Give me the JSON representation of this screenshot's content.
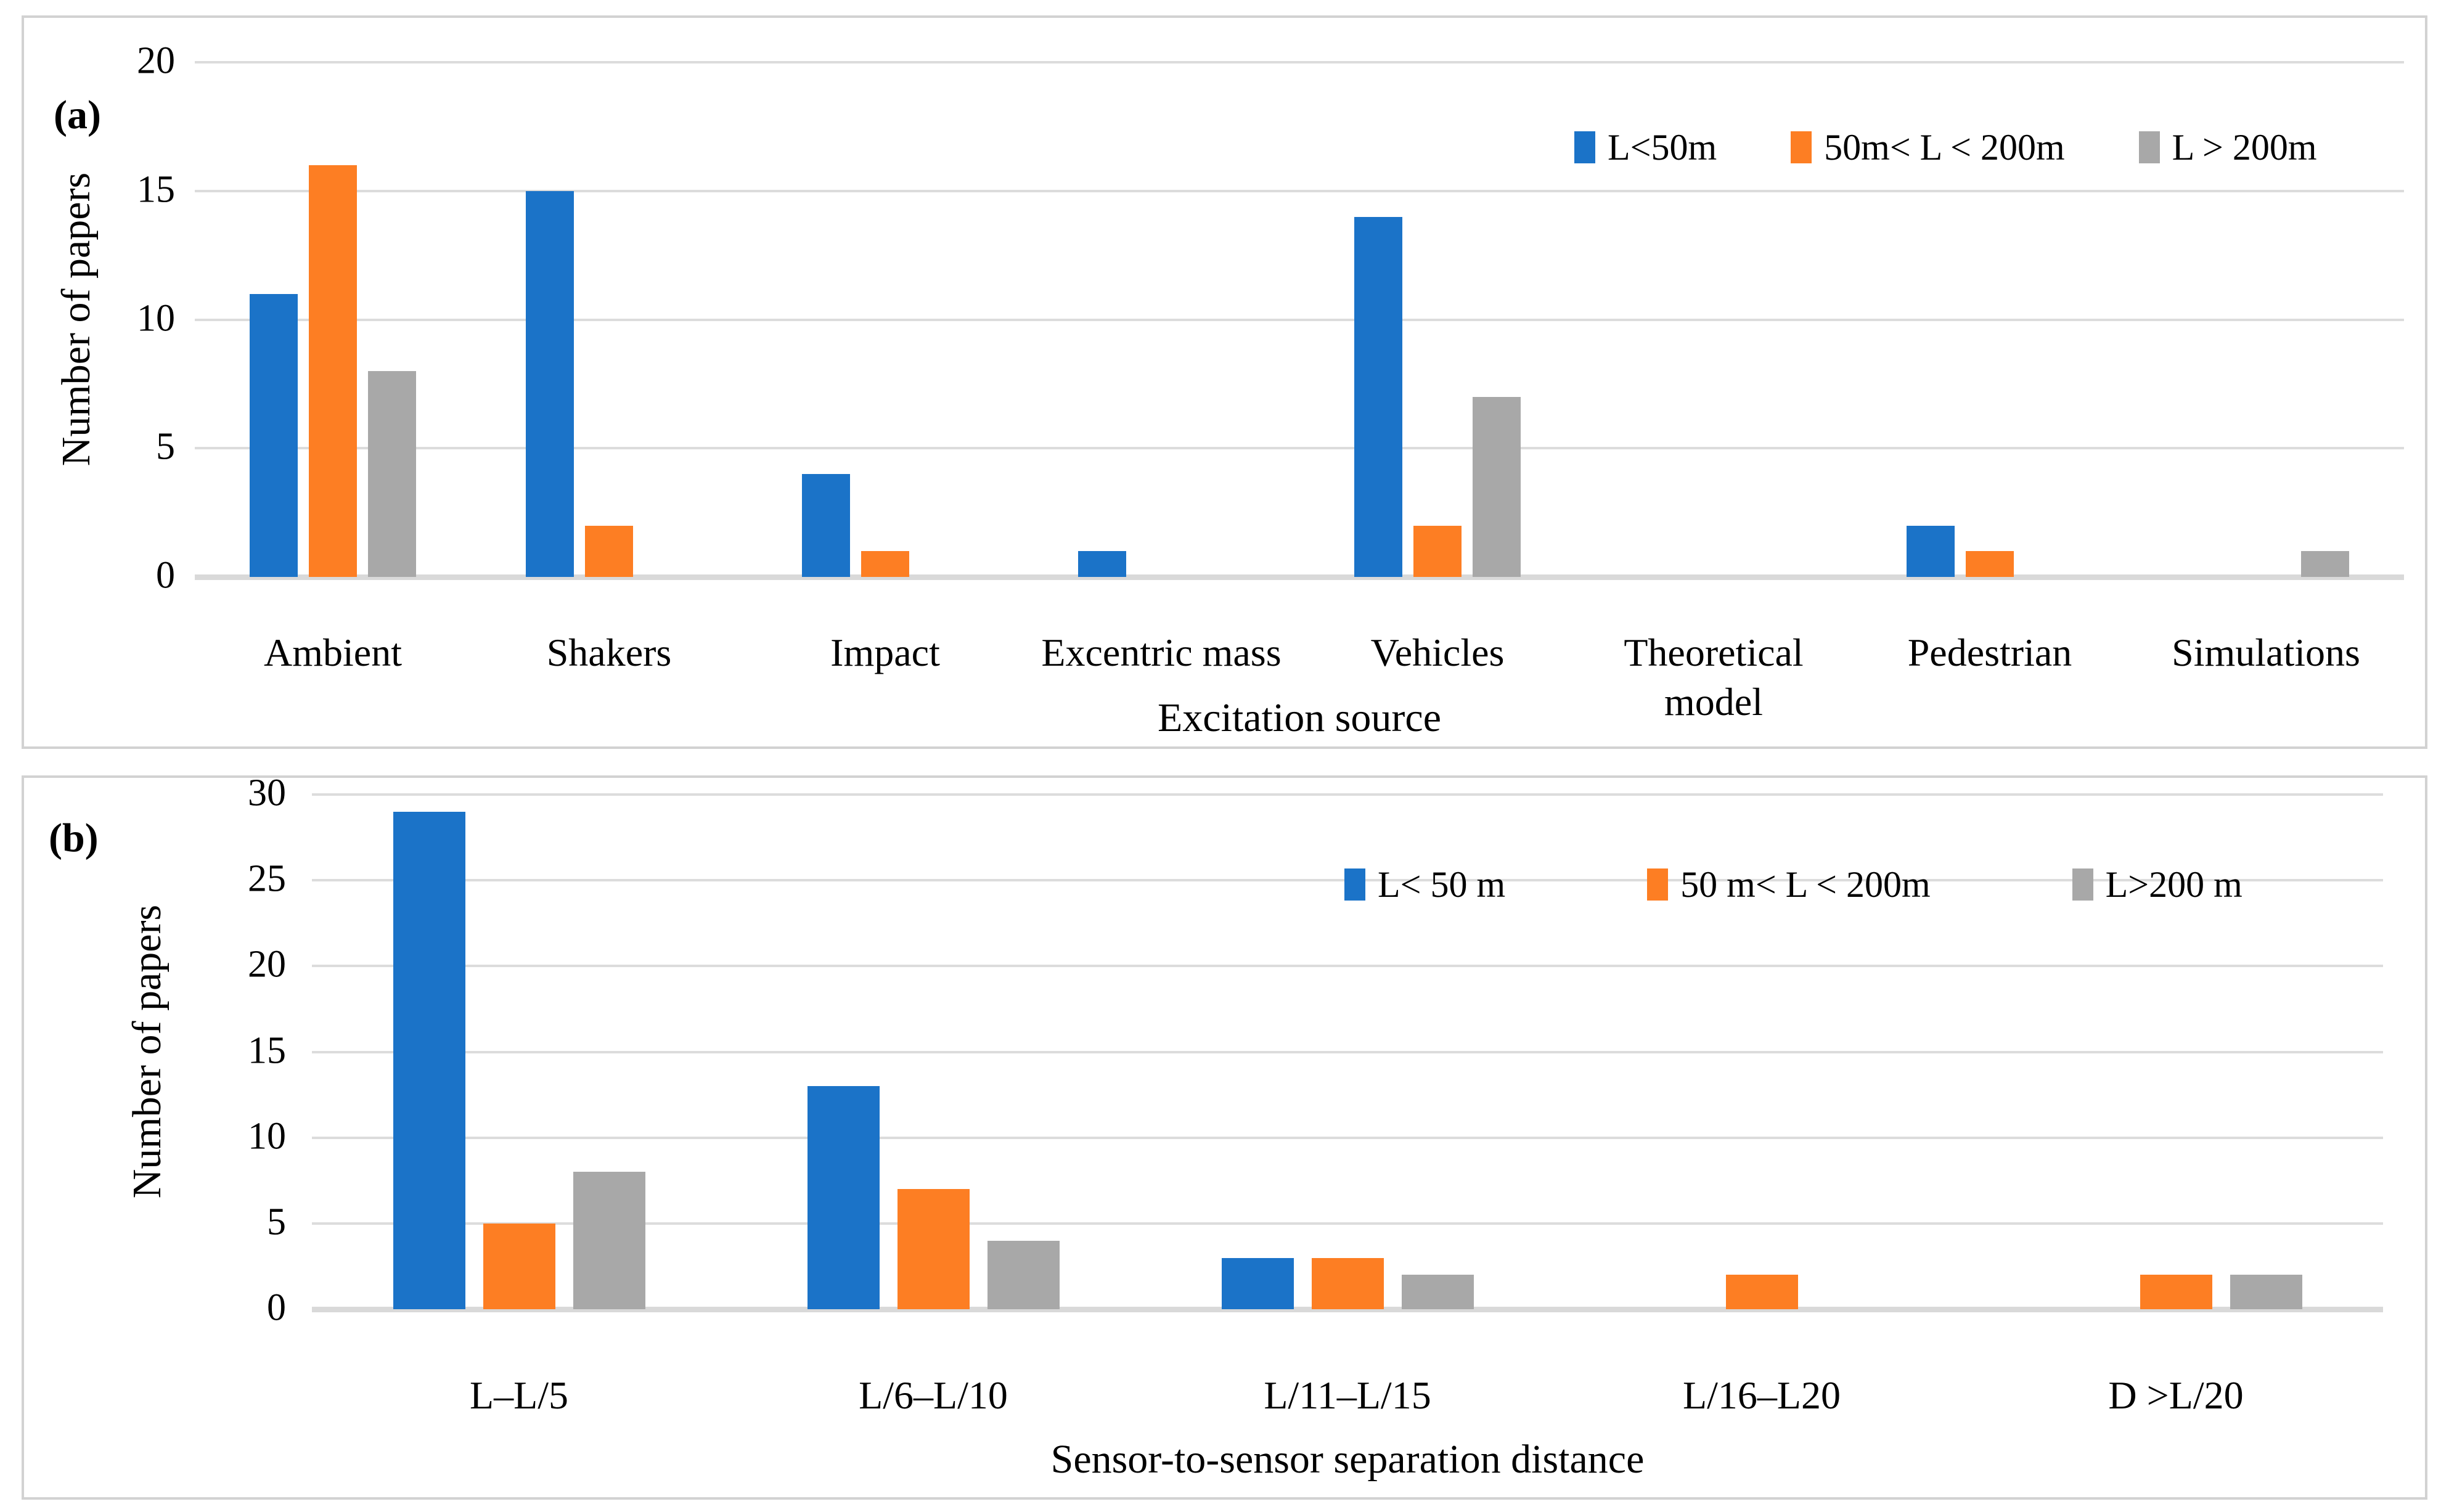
{
  "figure": {
    "panel_a_label": "(a)",
    "panel_b_label": "(b)"
  },
  "colors": {
    "series_blue": "#1b73c8",
    "series_orange": "#fd7e23",
    "series_gray": "#a8a8a8",
    "gridline": "#dcdcdc",
    "panel_border": "#d2d2d2"
  },
  "chart_data": [
    {
      "type": "bar",
      "panel_label": "(a)",
      "categories": [
        "Ambient",
        "Shakers",
        "Impact",
        "Excentric mass",
        "Vehicles",
        "Theoretical model",
        "Pedestrian",
        "Simulations"
      ],
      "series": [
        {
          "name": "L<50m",
          "color": "#1b73c8",
          "values": [
            11,
            15,
            4,
            1,
            14,
            0,
            2,
            0
          ]
        },
        {
          "name": "50m< L < 200m",
          "color": "#fd7e23",
          "values": [
            16,
            2,
            1,
            0,
            2,
            0,
            1,
            0
          ]
        },
        {
          "name": "L > 200m",
          "color": "#a8a8a8",
          "values": [
            8,
            0,
            0,
            0,
            7,
            0,
            0,
            1
          ]
        }
      ],
      "xlabel": "Excitation source",
      "ylabel": "Number of papers",
      "ylim": [
        0,
        20
      ],
      "ytick_step": 5,
      "grid": true,
      "legend_position": "top-right"
    },
    {
      "type": "bar",
      "panel_label": "(b)",
      "categories": [
        "L–L/5",
        "L/6–L/10",
        "L/11–L/15",
        "L/16–L20",
        "D >L/20"
      ],
      "series": [
        {
          "name": "L< 50 m",
          "color": "#1b73c8",
          "values": [
            29,
            13,
            3,
            0,
            0
          ]
        },
        {
          "name": "50 m< L < 200m",
          "color": "#fd7e23",
          "values": [
            5,
            7,
            3,
            2,
            2
          ]
        },
        {
          "name": "L>200 m",
          "color": "#a8a8a8",
          "values": [
            8,
            4,
            2,
            0,
            2
          ]
        }
      ],
      "xlabel": "Sensor-to-sensor separation distance",
      "ylabel": "Number of papers",
      "ylim": [
        0,
        30
      ],
      "ytick_step": 5,
      "grid": true,
      "legend_position": "top-right"
    }
  ]
}
